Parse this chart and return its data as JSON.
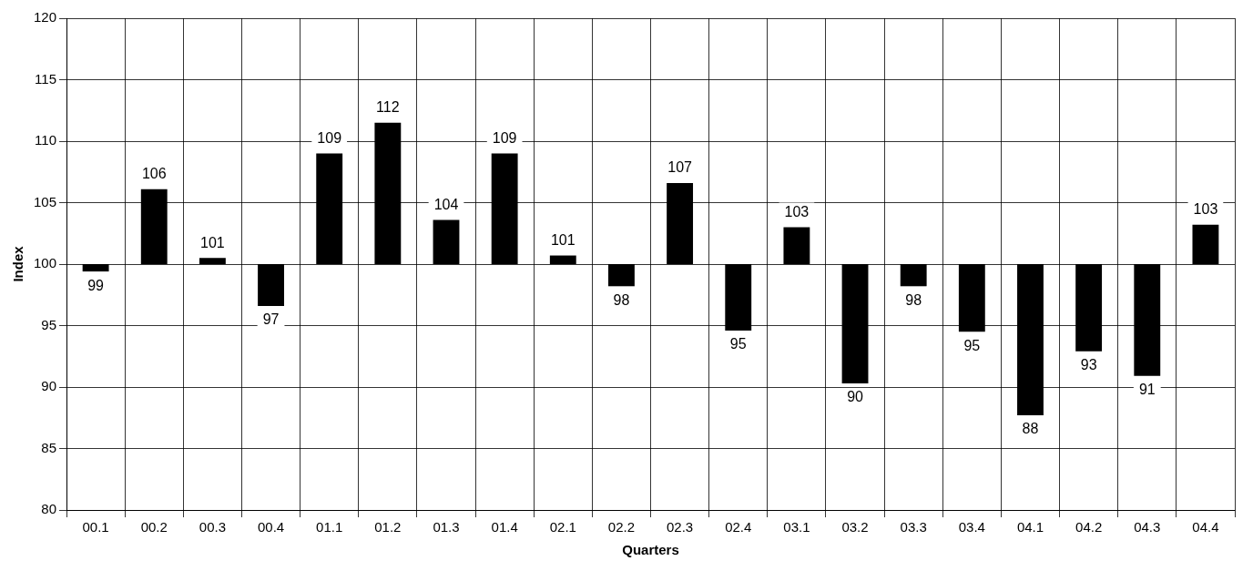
{
  "chart_data": {
    "type": "bar",
    "xlabel": "Quarters",
    "ylabel": "Index",
    "categories": [
      "00.1",
      "00.2",
      "00.3",
      "00.4",
      "01.1",
      "01.2",
      "01.3",
      "01.4",
      "02.1",
      "02.2",
      "02.3",
      "02.4",
      "03.1",
      "03.2",
      "03.3",
      "03.4",
      "04.1",
      "04.2",
      "04.3",
      "04.4"
    ],
    "base": [
      100,
      100,
      100,
      100,
      100,
      100,
      100,
      100,
      100,
      100,
      100,
      100,
      100,
      100,
      100,
      100,
      100,
      100,
      100,
      100
    ],
    "values": [
      -0.6,
      6.1,
      0.5,
      -3.4,
      9.0,
      11.5,
      3.6,
      9.0,
      0.7,
      -1.8,
      6.6,
      -5.4,
      3.0,
      -9.7,
      -1.8,
      -5.5,
      -12.3,
      -7.1,
      -9.1,
      3.2
    ],
    "value_labels": [
      "99",
      "106",
      "101",
      "97",
      "109",
      "112",
      "104",
      "109",
      "101",
      "98",
      "107",
      "95",
      "103",
      "90",
      "98",
      "95",
      "88",
      "93",
      "91",
      "103"
    ],
    "color": "#000000",
    "ylim": [
      80,
      120
    ],
    "yticks": [
      80,
      85,
      90,
      95,
      100,
      105,
      110,
      115,
      120
    ],
    "grid": true,
    "legend": false
  }
}
